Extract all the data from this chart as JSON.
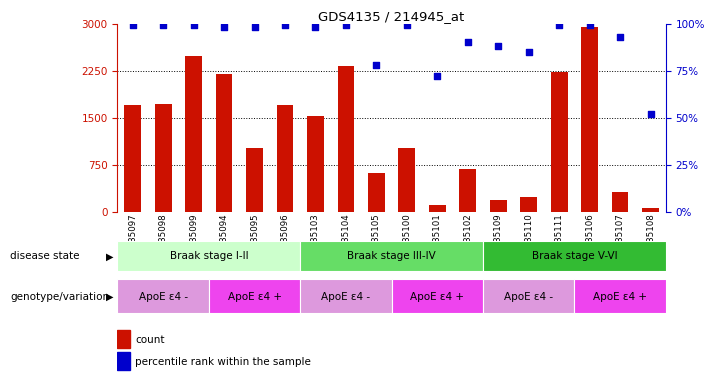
{
  "title": "GDS4135 / 214945_at",
  "samples": [
    "GSM735097",
    "GSM735098",
    "GSM735099",
    "GSM735094",
    "GSM735095",
    "GSM735096",
    "GSM735103",
    "GSM735104",
    "GSM735105",
    "GSM735100",
    "GSM735101",
    "GSM735102",
    "GSM735109",
    "GSM735110",
    "GSM735111",
    "GSM735106",
    "GSM735107",
    "GSM735108"
  ],
  "counts": [
    1700,
    1720,
    2480,
    2200,
    1020,
    1700,
    1520,
    2320,
    620,
    1020,
    115,
    680,
    190,
    230,
    2220,
    2940,
    310,
    65
  ],
  "percentile_ranks": [
    99,
    99,
    99,
    98,
    98,
    99,
    98,
    99,
    78,
    99,
    72,
    90,
    88,
    85,
    99,
    99,
    93,
    52
  ],
  "ylim_left": [
    0,
    3000
  ],
  "ylim_right": [
    0,
    100
  ],
  "yticks_left": [
    0,
    750,
    1500,
    2250,
    3000
  ],
  "yticks_right": [
    0,
    25,
    50,
    75,
    100
  ],
  "bar_color": "#cc1100",
  "dot_color": "#0000cc",
  "disease_state_groups": [
    {
      "label": "Braak stage I-II",
      "start": 0,
      "end": 6,
      "color": "#ccffcc"
    },
    {
      "label": "Braak stage III-IV",
      "start": 6,
      "end": 12,
      "color": "#66dd66"
    },
    {
      "label": "Braak stage V-VI",
      "start": 12,
      "end": 18,
      "color": "#33bb33"
    }
  ],
  "genotype_groups": [
    {
      "label": "ApoE ε4 -",
      "start": 0,
      "end": 3,
      "color": "#dd99dd"
    },
    {
      "label": "ApoE ε4 +",
      "start": 3,
      "end": 6,
      "color": "#ee44ee"
    },
    {
      "label": "ApoE ε4 -",
      "start": 6,
      "end": 9,
      "color": "#dd99dd"
    },
    {
      "label": "ApoE ε4 +",
      "start": 9,
      "end": 12,
      "color": "#ee44ee"
    },
    {
      "label": "ApoE ε4 -",
      "start": 12,
      "end": 15,
      "color": "#dd99dd"
    },
    {
      "label": "ApoE ε4 +",
      "start": 15,
      "end": 18,
      "color": "#ee44ee"
    }
  ],
  "disease_state_label": "disease state",
  "genotype_label": "genotype/variation",
  "legend_count": "count",
  "legend_percentile": "percentile rank within the sample",
  "grid_yticks": [
    750,
    1500,
    2250
  ],
  "bar_width": 0.55
}
